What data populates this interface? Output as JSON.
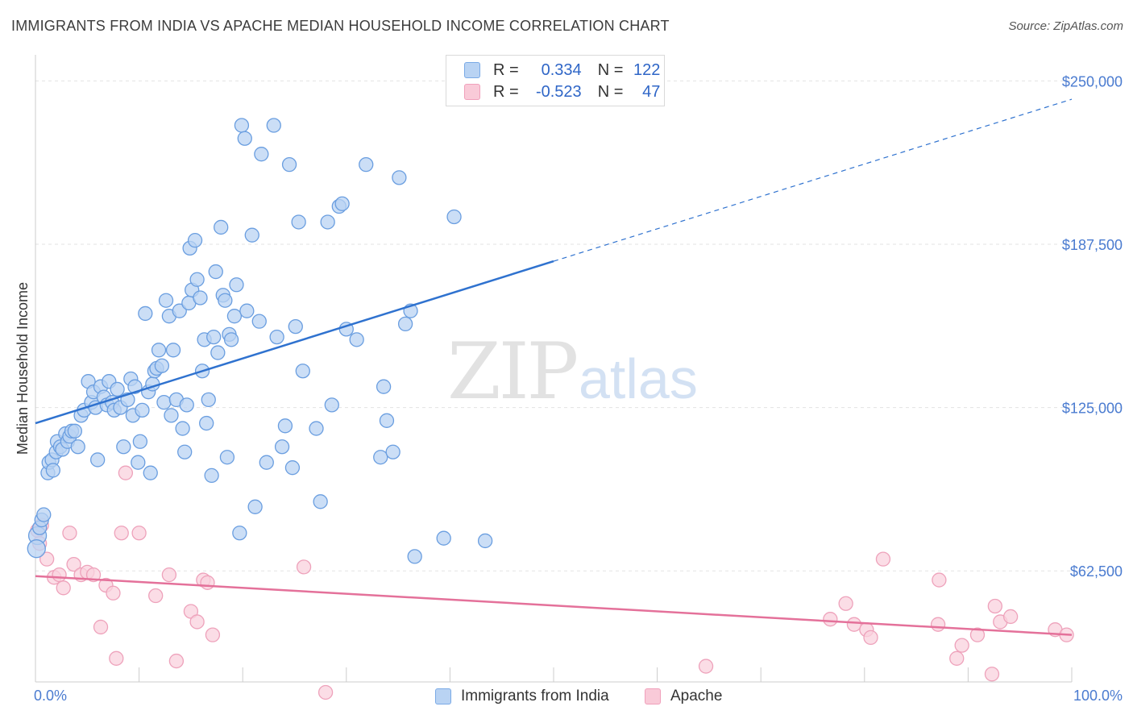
{
  "header": {
    "title": "IMMIGRANTS FROM INDIA VS APACHE MEDIAN HOUSEHOLD INCOME CORRELATION CHART",
    "source": "Source: ZipAtlas.com"
  },
  "watermark": {
    "zip": "ZIP",
    "atlas": "atlas"
  },
  "legend": {
    "rows": [
      {
        "r_label": "R =",
        "r_value": "0.334",
        "n_label": "N =",
        "n_value": "122",
        "color": "#7aaae6",
        "fill": "#b9d3f3"
      },
      {
        "r_label": "R =",
        "r_value": "-0.523",
        "n_label": "N =",
        "n_value": "47",
        "color": "#f0a0bb",
        "fill": "#f9cad8"
      }
    ]
  },
  "bottom_legend": {
    "series1": "Immigrants from India",
    "series2": "Apache"
  },
  "colors": {
    "blue_point_fill": "#b9d3f3",
    "blue_point_stroke": "#6a9ee0",
    "blue_line": "#2f72cf",
    "pink_point_fill": "#f9d2de",
    "pink_point_stroke": "#eea2bb",
    "pink_line": "#e4719a",
    "tick_label": "#4a7bd0"
  },
  "chart_data": {
    "type": "scatter",
    "title": "IMMIGRANTS FROM INDIA VS APACHE MEDIAN HOUSEHOLD INCOME CORRELATION CHART",
    "xlabel": "",
    "ylabel": "Median Household Income",
    "xlim": [
      0,
      100
    ],
    "ylim": [
      20000,
      260000
    ],
    "x_tick_labels": [
      "0.0%",
      "100.0%"
    ],
    "y_ticks": [
      62500,
      125000,
      187500,
      250000
    ],
    "y_tick_labels": [
      "$62,500",
      "$125,000",
      "$187,500",
      "$250,000"
    ],
    "grid": true,
    "legend_position": "top-center",
    "series": [
      {
        "name": "Immigrants from India",
        "trend": {
          "x": [
            0,
            50
          ],
          "y": [
            119000,
            181000
          ],
          "dashed_extension": {
            "x": [
              50,
              100
            ],
            "y": [
              181000,
              243000
            ]
          }
        },
        "points": [
          [
            0.2,
            76000
          ],
          [
            0.4,
            79000
          ],
          [
            0.6,
            82000
          ],
          [
            0.8,
            84000
          ],
          [
            1.2,
            100000
          ],
          [
            1.3,
            104000
          ],
          [
            1.6,
            105000
          ],
          [
            1.7,
            101000
          ],
          [
            2.0,
            108000
          ],
          [
            2.1,
            112000
          ],
          [
            2.4,
            110000
          ],
          [
            2.6,
            109000
          ],
          [
            2.9,
            115000
          ],
          [
            3.1,
            112000
          ],
          [
            3.3,
            114000
          ],
          [
            3.5,
            116000
          ],
          [
            3.8,
            116000
          ],
          [
            4.1,
            110000
          ],
          [
            4.4,
            122000
          ],
          [
            4.7,
            124000
          ],
          [
            5.1,
            135000
          ],
          [
            5.4,
            127000
          ],
          [
            5.6,
            131000
          ],
          [
            5.8,
            125000
          ],
          [
            6.0,
            105000
          ],
          [
            6.3,
            133000
          ],
          [
            6.6,
            129000
          ],
          [
            6.9,
            126000
          ],
          [
            7.1,
            135000
          ],
          [
            7.4,
            127000
          ],
          [
            7.6,
            124000
          ],
          [
            7.9,
            132000
          ],
          [
            8.2,
            125000
          ],
          [
            8.5,
            110000
          ],
          [
            8.9,
            128000
          ],
          [
            9.2,
            136000
          ],
          [
            9.4,
            122000
          ],
          [
            9.6,
            133000
          ],
          [
            9.9,
            104000
          ],
          [
            10.1,
            112000
          ],
          [
            10.3,
            124000
          ],
          [
            10.6,
            161000
          ],
          [
            10.9,
            131000
          ],
          [
            11.1,
            100000
          ],
          [
            11.3,
            134000
          ],
          [
            11.5,
            139000
          ],
          [
            11.7,
            140000
          ],
          [
            11.9,
            147000
          ],
          [
            12.2,
            141000
          ],
          [
            12.4,
            127000
          ],
          [
            12.6,
            166000
          ],
          [
            12.9,
            160000
          ],
          [
            13.1,
            122000
          ],
          [
            13.3,
            147000
          ],
          [
            13.6,
            128000
          ],
          [
            13.9,
            162000
          ],
          [
            14.2,
            117000
          ],
          [
            14.4,
            108000
          ],
          [
            14.6,
            126000
          ],
          [
            14.8,
            165000
          ],
          [
            14.9,
            186000
          ],
          [
            15.1,
            170000
          ],
          [
            15.4,
            189000
          ],
          [
            15.6,
            174000
          ],
          [
            15.9,
            167000
          ],
          [
            16.1,
            139000
          ],
          [
            16.3,
            151000
          ],
          [
            16.5,
            119000
          ],
          [
            16.7,
            128000
          ],
          [
            17.0,
            99000
          ],
          [
            17.2,
            152000
          ],
          [
            17.4,
            177000
          ],
          [
            17.6,
            146000
          ],
          [
            17.9,
            194000
          ],
          [
            18.1,
            168000
          ],
          [
            18.3,
            166000
          ],
          [
            18.5,
            106000
          ],
          [
            18.7,
            153000
          ],
          [
            18.9,
            151000
          ],
          [
            19.2,
            160000
          ],
          [
            19.4,
            172000
          ],
          [
            19.7,
            77000
          ],
          [
            19.9,
            233000
          ],
          [
            20.2,
            228000
          ],
          [
            20.4,
            162000
          ],
          [
            20.9,
            191000
          ],
          [
            21.2,
            87000
          ],
          [
            21.6,
            158000
          ],
          [
            21.8,
            222000
          ],
          [
            22.3,
            104000
          ],
          [
            23.0,
            233000
          ],
          [
            23.3,
            152000
          ],
          [
            23.8,
            110000
          ],
          [
            24.1,
            118000
          ],
          [
            24.5,
            218000
          ],
          [
            24.8,
            102000
          ],
          [
            25.1,
            156000
          ],
          [
            25.4,
            196000
          ],
          [
            25.8,
            139000
          ],
          [
            27.1,
            117000
          ],
          [
            27.5,
            89000
          ],
          [
            28.2,
            196000
          ],
          [
            28.6,
            126000
          ],
          [
            29.3,
            202000
          ],
          [
            29.6,
            203000
          ],
          [
            30.0,
            155000
          ],
          [
            31.0,
            151000
          ],
          [
            31.9,
            218000
          ],
          [
            33.3,
            106000
          ],
          [
            33.6,
            133000
          ],
          [
            33.9,
            120000
          ],
          [
            34.5,
            108000
          ],
          [
            35.1,
            213000
          ],
          [
            35.7,
            157000
          ],
          [
            36.2,
            162000
          ],
          [
            36.6,
            68000
          ],
          [
            39.4,
            75000
          ],
          [
            40.4,
            198000
          ],
          [
            43.4,
            74000
          ],
          [
            0.1,
            71000
          ]
        ]
      },
      {
        "name": "Apache",
        "trend": {
          "x": [
            0,
            100
          ],
          "y": [
            60500,
            38000
          ]
        },
        "points": [
          [
            0.2,
            78000
          ],
          [
            0.4,
            73000
          ],
          [
            0.6,
            80000
          ],
          [
            1.1,
            67000
          ],
          [
            1.8,
            60000
          ],
          [
            2.3,
            61000
          ],
          [
            2.7,
            56000
          ],
          [
            3.3,
            77000
          ],
          [
            3.7,
            65000
          ],
          [
            4.4,
            61000
          ],
          [
            5.0,
            62000
          ],
          [
            5.6,
            61000
          ],
          [
            6.3,
            41000
          ],
          [
            6.8,
            57000
          ],
          [
            7.5,
            54000
          ],
          [
            7.8,
            29000
          ],
          [
            8.3,
            77000
          ],
          [
            8.7,
            100000
          ],
          [
            10.0,
            77000
          ],
          [
            11.6,
            53000
          ],
          [
            12.9,
            61000
          ],
          [
            13.6,
            28000
          ],
          [
            15.0,
            47000
          ],
          [
            15.6,
            43000
          ],
          [
            16.2,
            59000
          ],
          [
            16.6,
            58000
          ],
          [
            17.1,
            38000
          ],
          [
            25.9,
            64000
          ],
          [
            28.0,
            16000
          ],
          [
            64.7,
            26000
          ],
          [
            76.7,
            44000
          ],
          [
            78.2,
            50000
          ],
          [
            79.0,
            42000
          ],
          [
            80.2,
            40000
          ],
          [
            80.6,
            37000
          ],
          [
            81.8,
            67000
          ],
          [
            87.1,
            42000
          ],
          [
            87.2,
            59000
          ],
          [
            88.9,
            29000
          ],
          [
            89.4,
            34000
          ],
          [
            90.9,
            38000
          ],
          [
            92.3,
            23000
          ],
          [
            92.6,
            49000
          ],
          [
            93.1,
            43000
          ],
          [
            94.1,
            45000
          ],
          [
            98.4,
            40000
          ],
          [
            99.5,
            38000
          ]
        ]
      }
    ]
  }
}
